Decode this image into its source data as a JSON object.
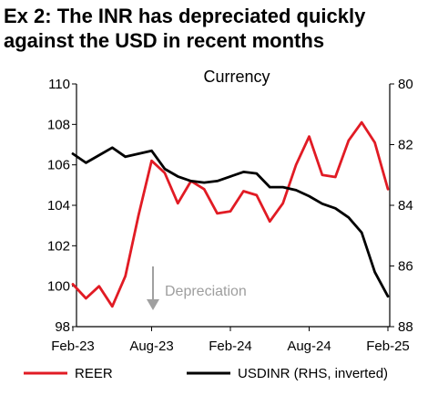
{
  "header": {
    "title_line1": "Ex 2: The INR has depreciated quickly",
    "title_line2": "against the USD in recent months"
  },
  "chart_data": {
    "type": "line",
    "title": "Currency",
    "x": [
      "Feb-23",
      "Mar-23",
      "Apr-23",
      "May-23",
      "Jun-23",
      "Jul-23",
      "Aug-23",
      "Sep-23",
      "Oct-23",
      "Nov-23",
      "Dec-23",
      "Jan-24",
      "Feb-24",
      "Mar-24",
      "Apr-24",
      "May-24",
      "Jun-24",
      "Jul-24",
      "Aug-24",
      "Sep-24",
      "Oct-24",
      "Nov-24",
      "Dec-24",
      "Jan-25",
      "Feb-25"
    ],
    "x_tick_labels": [
      "Feb-23",
      "Aug-23",
      "Feb-24",
      "Aug-24",
      "Feb-25"
    ],
    "left_axis": {
      "ylim": [
        98,
        110
      ],
      "ticks": [
        "98",
        "100",
        "102",
        "104",
        "106",
        "108",
        "110"
      ]
    },
    "right_axis": {
      "ylim": [
        80,
        88
      ],
      "inverted": true,
      "ticks": [
        "80",
        "82",
        "84",
        "86",
        "88"
      ]
    },
    "series": [
      {
        "name": "REER",
        "axis": "left",
        "color": "#e11b24",
        "values": [
          100.1,
          99.4,
          100.0,
          99.0,
          100.5,
          103.5,
          106.2,
          105.6,
          104.1,
          105.2,
          104.8,
          103.6,
          103.7,
          104.7,
          104.5,
          103.2,
          104.1,
          106.0,
          107.4,
          105.5,
          105.4,
          107.2,
          108.1,
          107.1,
          104.8
        ]
      },
      {
        "name": "USDINR (RHS, inverted)",
        "axis": "right",
        "color": "#000000",
        "values": [
          82.3,
          82.6,
          82.35,
          82.1,
          82.4,
          82.3,
          82.2,
          82.8,
          83.05,
          83.2,
          83.25,
          83.2,
          83.05,
          82.9,
          82.95,
          83.4,
          83.4,
          83.5,
          83.7,
          83.95,
          84.1,
          84.4,
          84.9,
          86.2,
          87.0
        ]
      }
    ],
    "annotation": {
      "text": "Depreciation",
      "arrow": "down"
    },
    "grid": false,
    "legend_position": "bottom"
  }
}
